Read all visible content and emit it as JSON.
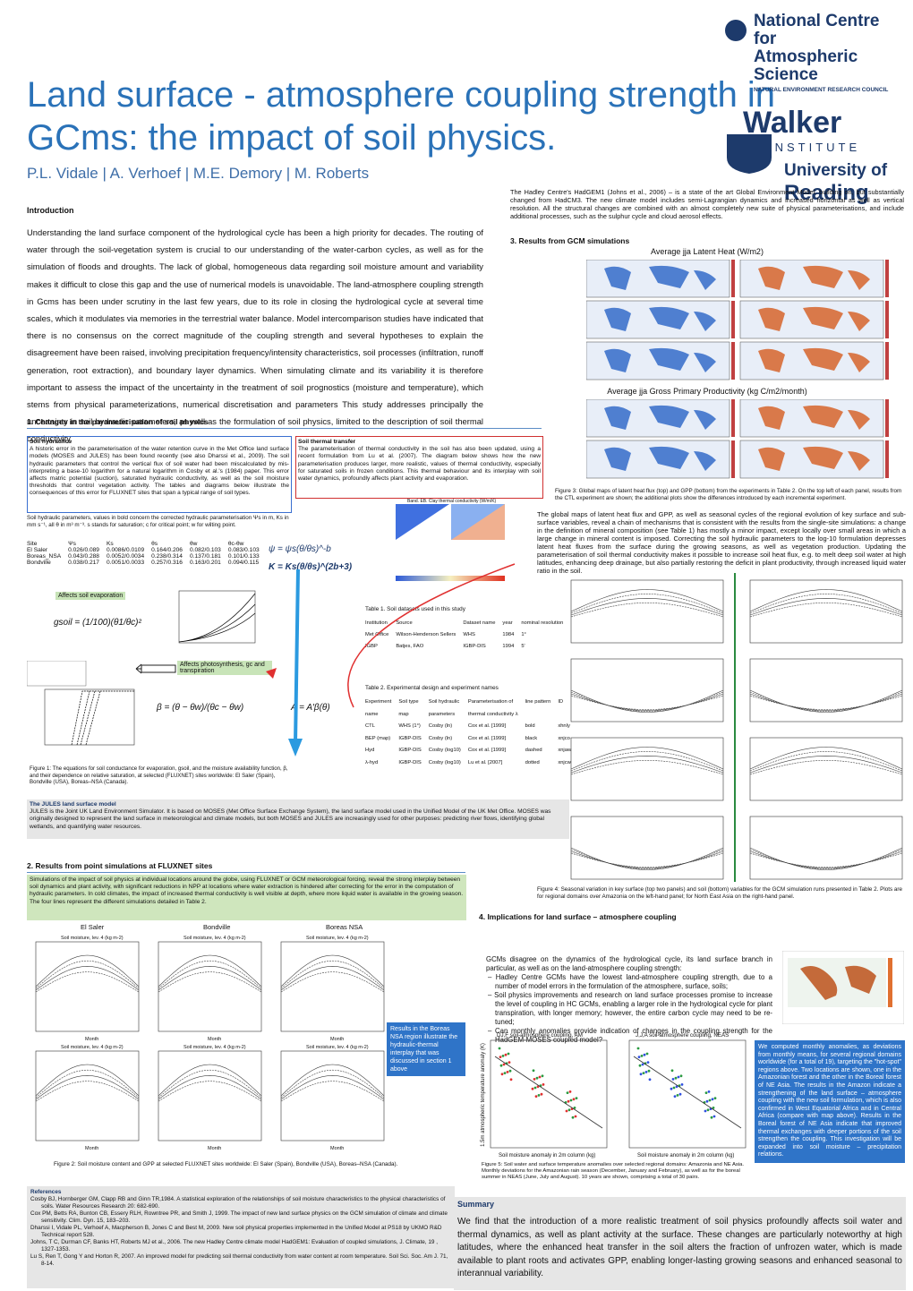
{
  "header": {
    "title_line1": "Land surface - atmosphere coupling strength in",
    "title_line2": "GCms: the impact of soil physics.",
    "authors": "P.L. Vidale | A. Verhoef | M.E. Demory | M. Roberts",
    "ncas_line1": "National Centre for",
    "ncas_line2": "Atmospheric Science",
    "ncas_sub": "NATURAL ENVIRONMENT RESEARCH COUNCIL",
    "walker": "Walker",
    "institute": "INSTITUTE",
    "uni_line1": "University of",
    "uni_line2": "Reading"
  },
  "hadgem": "The Hadley Centre's HadGEM1 (Johns et al., 2006) – is a state of the art Global Environment Model, building on, but substantially changed from HadCM3. The new climate model includes semi-Lagrangian dynamics and increased horizontal as well as vertical resolution. All the structural changes are combined with an almost completely new suite of physical parameterisations, and include additional processes, such as the sulphur cycle and cloud aerosol effects.",
  "introduction": {
    "heading": "Introduction",
    "text": "Understanding the land surface component of the hydrological cycle has been a high priority for decades. The routing of water through the soil-vegetation system is crucial to our understanding of the water-carbon cycles, as well as for the simulation of floods and droughts. The lack of global, homogeneous data regarding soil moisture amount and variability makes it difficult to close this gap and the use of numerical models is unavoidable. The land-atmosphere coupling strength in Gcms has been under scrutiny in the last few years, due to its role in closing the hydrological cycle at several time scales, which it modulates via memories in the terrestrial water balance. Model intercomparison studies have indicated that there is no consensus on the correct magnitude of the coupling strength and several hypotheses to explain the disagreement have been raised, involving precipitation frequency/intensity characteristics, soil processes (infiltration, runoff generation, root extraction), and boundary layer dynamics. When simulating climate and its variability it is therefore important to assess the impact of the uncertainty in the treatment of soil prognostics (moisture and temperature), which stems from physical parameterizations, numerical discretisation and parameters This study addresses principally the uncertainty in soil hydraulic parameters, as well as the formulation of soil physics, limited to the description of soil thermal conductivity."
  },
  "section3": {
    "heading": "3. Results from GCM simulations",
    "map_title1": "Average jja Latent Heat (W/m2)",
    "map_title2": "Average jja Gross Primary Productivity (kg C/m2/month)",
    "caption": "Figure 3: Global maps of latent heat flux (top) and GPP (bottom) from the experiments in Table 2. On the top left of each panel, results from the CTL experiment are shown; the additional plots show the differences introduced by each incremental experiment.",
    "text": "The global maps of latent heat flux and GPP, as well as seasonal cycles of the regional evolution of key surface and sub-surface variables, reveal a chain of mechanisms that is consistent with the results from the single-site simulations: a change in the definition of mineral composition (see Table 1) has mostly a minor impact, except locally over small areas in which a large change in mineral content is imposed. Correcting the soil hydraulic parameters to the log-10 formulation depresses latent heat fluxes from the surface during the growing seasons, as well as vegetation production. Updating the parameterisation of soil thermal conductivity makes it possible to increase soil heat flux, e.g. to melt deep soil water at high latitudes, enhancing deep drainage, but also partially restoring the deficit in plant productivity, through increased liquid water ratio in the soil.",
    "fig4_caption": "Figure 4: Seasonal variation in key surface (top two panels) and soil (bottom) variables for the GCM simulation runs presented in Table 2. Plots are for regional domains over Amazonia on the left-hand panel; for North East Asia on the right-hand panel."
  },
  "section1": {
    "heading": "1. Changes in the parameterisation of soil physics",
    "hydraulics_heading": "Soil hydraulics",
    "hydraulics_text": "A historic error in the parameterisation of the water  retention curve in the Met Office land surface models (MOSES and JULES) has been found recently (see also Dharssi et al., 2009). The soil hydraulic parameters that control the vertical flux of soil water had been miscalculated by mis-interpreting a base-10 logarithm for a natural logarithm in Cosby et al.'s (1984) paper. This error affects matric potential (suction), saturated hydraulic conductivity, as well as the soil moisture thresholds that control vegetation activity. The tables and diagrams below illustrate the consequences of this error for FLUXNET sites that span a typical range of soil types.",
    "thermal_heading": "Soil thermal transfer",
    "thermal_text": "The parameterisation of thermal conductivity in the soil has also been updated, using a recent formulation from Lu et al. (2007). The diagram below shows how the new parameterisation produces larger, more realistic, values of thermal conductivity, especially for saturated soils in frozen conditions. This thermal behaviour and its interplay with soil water dynamics, profoundly affects plant activity and evaporation.",
    "param_note": "Soil hydraulic parameters, values in bold concern the corrected hydraulic parameterisation Ψs in m, Ks in mm s⁻¹, all θ in m³ m⁻³. s stands for saturation; c for critical point; w for wilting point.",
    "param_table": {
      "header": [
        "Site",
        "Ψs",
        "Ks",
        "θs",
        "θw",
        "θc-θw"
      ],
      "rows": [
        [
          "El Saler",
          "0.026/0.089",
          "0.0086/0.0109",
          "0.164/0.206",
          "0.082/0.103",
          "0.083/0.103"
        ],
        [
          "Boreas_NSA",
          "0.043/0.288",
          "0.0052/0.0034",
          "0.238/0.314",
          "0.137/0.181",
          "0.101/0.133"
        ],
        [
          "Bondville",
          "0.038/0.217",
          "0.0051/0.0033",
          "0.257/0.316",
          "0.163/0.201",
          "0.094/0.115"
        ]
      ]
    },
    "eq_psi": "ψ = ψs(θ/θs)^-b",
    "eq_k": "K = Ks(θ/θs)^(2b+3)",
    "eq_gsoil": "gsoil = (1/100)(θ1/θc)²",
    "eq_beta": "β = (θ − θw)/(θc − θw)",
    "eq_a": "A = A′β(θ)",
    "label_evap": "Affects soil evaporation",
    "label_photo": "Affects photosynthesis, gc and transpiration",
    "thermal_fig_title": "Band. EB. Clay thermal conductivity (W/m/K)",
    "table1": {
      "caption": "Table 1.  Soil datasets used in this study",
      "header": [
        "Institution",
        "Source",
        "Dataset name",
        "year",
        "nominal resolution"
      ],
      "rows": [
        [
          "Met Office",
          "Wilson-Henderson Sellers",
          "WHS",
          "1984",
          "1°"
        ],
        [
          "IGBP",
          "Batjes, FAO",
          "IGBP-DIS",
          "1994",
          "5'"
        ]
      ]
    },
    "table2": {
      "caption": "Table 2.  Experimental design and experiment names",
      "header": [
        "Experiment",
        "Soil type",
        "Soil hydraulic",
        "Parameterisation of",
        "line pattern",
        "ID"
      ],
      "header2": [
        "name",
        "map",
        "parameters",
        "thermal conductivity λ",
        "",
        ""
      ],
      "rows": [
        [
          "CTL",
          "WHS (1°)",
          "Cosby (ln)",
          "Cox et al. [1999]",
          "bold",
          "xhnly"
        ],
        [
          "BEP (map)",
          "IGBP-DIS",
          "Cosby (ln)",
          "Cox et al. [1999]",
          "black",
          "xnjco"
        ],
        [
          "Hyd",
          "IGBP-DIS",
          "Cosby (log10)",
          "Cox et al. [1999]",
          "dashed",
          "xnjaw"
        ],
        [
          "λ-hyd",
          "IGBP-DIS",
          "Cosby (log10)",
          "Lu et al. [2007]",
          "dotted",
          "xnjcw"
        ]
      ]
    },
    "fig1_caption": "Figure 1: The equations for soil  conductance for evaporation, gsoil, and the moisture availability function, β, and their dependence on relative saturation, at selected (FLUXNET) sites worldwide: El Saler (Spain), Bondville (USA), Boreas–NSA (Canada)."
  },
  "jules": {
    "heading": "The JULES land surface model",
    "text": "JULES is the Joint UK Land Environment Simulator. It is based on MOSES (Met Office Surface Exchange System), the land surface model used in the Unified Model of the UK Met Office. MOSES was originally designed to represent the land surface in meteorological and climate models, but both MOSES and JULES are increasingly used for other purposes: predicting river flows, identifying global wetlands, and quantifying water resources."
  },
  "section2": {
    "heading": "2. Results from point simulations at FLUXNET sites",
    "text": "Simulations of the impact of soil physics at individual locations around the globe, using FLUXNET or GCM meteorological forcing, reveal the strong interplay between soil dynamics and plant activity, with significant reductions in NPP at locations where water extraction is hindered after correcting for the error in the computation of  hydraulic parameters. In cold climates, the impact of increased thermal conductivity is well visible at depth, where more liquid water is available in the growing season. The four lines represent the different simulations detailed in Table 2.",
    "sites": [
      "El Saler",
      "Bondville",
      "Boreas NSA"
    ],
    "plot_title": "Soil moisture, lev. 4 (kg m-2)",
    "month": "Month",
    "boreas_note": "Results in the Boreas NSA region illustrate the hydraulic-thermal interplay that was discussed in section 1 above",
    "caption": "Figure 2: Soil  moisture content and GPP at selected FLUXNET sites worldwide: El Saler (Spain), Bondville (USA), Boreas–NSA (Canada)."
  },
  "section4": {
    "heading": "4. Implications for land surface – atmosphere coupling",
    "intro": "GCMs disagree on the dynamics of the hydrological cycle, its land surface branch in particular, as well as on the land-atmosphere coupling strength:",
    "bullets": [
      "Hadley Centre GCMs have the lowest land-atmosphere coupling strength, due to a number of model errors in the formulation of the atmosphere, surface, soils;",
      "Soil physics improvements and research on land surface processes promise to increase the level of coupling in HC GCMs, enabling a larger role in the hydrological cycle for plant transpiration, with longer memory; however, the entire carbon cycle may need to be re-tuned;",
      "Can monthly anomalies provide indication of changes in the coupling strength for the HadGEM-MOSES coupled model?"
    ],
    "fig5_title1": "DJ,F soil-atmosphere coupling, AM",
    "fig5_title2": "J,J,A soil-atmosphere coupling, NEAS",
    "fig5_ylabel": "1.5m atmospheric temperature anomaly (K)",
    "fig5_xlabel1": "Soil moisture anomaly in 2m column (kg)",
    "fig5_xlabel2": "Soil moisture anomaly in 2m column (kg)",
    "fig5_caption": "Figure 5: Soil water and surface temperature anomalies over selected regional domains: Amazonia and NE Asia. Monthly deviations for the Amazonian rain season (December, January and February), as well as for the boreal summer in NEAS (June, July and August). 10 years are shown, comprising a total of 30 pairs.",
    "blue_box": "We computed monthly anomalies, as deviations from monthly means, for several regional domains worldwide (for a total of 19), targeting the \"hot-spot\" regions above. Two locations are shown, one in the Amazonian forest and the other in the Boreal forest of NE Asia. The results in the Amazon indicate a strengthening of the land surface – atmosphere coupling with the new soil formulation, which is also confirmed in West Equatorial Africa and in Central Africa (compare with map above). Results in the Boreal forest of NE Asia  indicate that improved thermal exchanges with deeper portions of the soil strengthen the coupling. This investigation will be expanded into soil moisture – precipitation relations."
  },
  "references": {
    "heading": "References",
    "items": [
      "Cosby BJ, Hornberger GM, Clapp RB and Ginn TR,1984. A statistical exploration of the relationships of soil moisture characteristics to the physical characteristics of soils. Water Resources Research 20: 682-690.",
      "Cox PM, Betts RA, Bunton CB, Essery RLH, Rowntree PR, and Smith J, 1999. The impact of new land surface physics on the GCM simulation of climate and climate sensitivity. Clim. Dyn. 15, 183–203.",
      "Dharssi I, Vidale PL, Verhoef A, Macpherson B, Jones C and Best M, 2009. New soil physical properties implemented in the Unified Model at PS18 by UKMO R&D Technical report 528.",
      "Johns, T C, Durman CF, Banks HT, Roberts MJ et al., 2006. The new Hadley Centre climate model HadGEM1: Evaluation of coupled simulations, J. Climate, 19 , 1327-1353.",
      "Lu S, Ren T, Gong Y and Horton R, 2007. An improved model for predicting soil thermal conductivity from water content at room temperature. Soil Sci. Soc. Am J. 71, 8-14."
    ]
  },
  "summary": {
    "heading": "Summary",
    "text": "We find that the introduction of a more realistic treatment of soil physics profoundly affects soil water and thermal dynamics, as well as plant activity at the surface. These changes are particularly noteworthy at high latitudes, where the enhanced heat transfer in the soil alters the fraction of unfrozen water, which is made available to plant roots and activates GPP, enabling longer-lasting growing seasons and enhanced seasonal to interannual variability."
  }
}
